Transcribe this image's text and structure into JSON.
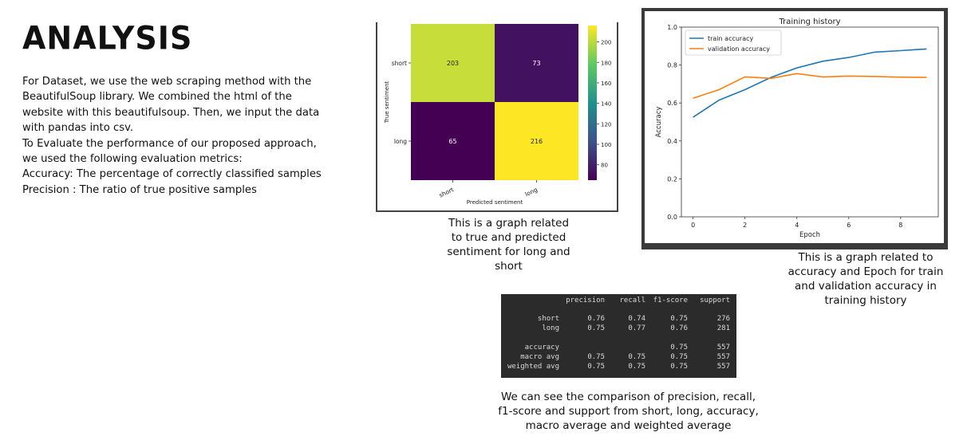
{
  "slide": {
    "title": "ANALYSIS",
    "paragraphs": [
      "For Dataset, we use the web scraping method with the",
      "BeautifulSoup library. We combined the html of the",
      "website with this beautifulsoup. Then, we input the data",
      "with pandas into csv.",
      "To Evaluate the performance of our proposed approach,",
      "we used the following evaluation metrics:",
      "Accuracy: The percentage of correctly classified samples",
      "Precision : The ratio of true positive samples"
    ],
    "captions": {
      "confusion": [
        "This is a graph related",
        "to true and predicted",
        "sentiment for long and",
        "short"
      ],
      "history": [
        "This is a graph related to",
        "accuracy and Epoch for train",
        "and validation accuracy in",
        "training history"
      ],
      "table": [
        "We can see the comparison of precision, recall,",
        "f1-score and support from short, long, accuracy,",
        "macro average and weighted average"
      ]
    }
  },
  "chart_data": [
    {
      "type": "heatmap",
      "title": "",
      "xlabel": "Predicted sentiment",
      "ylabel": "True sentiment",
      "x_labels": [
        "short",
        "long"
      ],
      "y_labels": [
        "short",
        "long"
      ],
      "values": [
        [
          203,
          73
        ],
        [
          65,
          216
        ]
      ],
      "colorbar_ticks": [
        80,
        100,
        120,
        140,
        160,
        180,
        200
      ],
      "colorbar_range": [
        65,
        216
      ],
      "colors": {
        "low": "#440154",
        "high": "#fde725",
        "mid_low": "#3b528b",
        "mid_high": "#5ec962",
        "cell_text_dark": "#222222",
        "cell_text_light": "#ffffff"
      }
    },
    {
      "type": "line",
      "title": "Training history",
      "xlabel": "Epoch",
      "ylabel": "Accuracy",
      "xlim": [
        -0.45,
        9.45
      ],
      "ylim": [
        0.0,
        1.0
      ],
      "x_ticks": [
        0,
        2,
        4,
        6,
        8
      ],
      "y_ticks": [
        "0.0",
        "0.2",
        "0.4",
        "0.6",
        "0.8",
        "1.0"
      ],
      "legend": "top-left",
      "x": [
        0,
        1,
        2,
        3,
        4,
        5,
        6,
        7,
        8,
        9
      ],
      "series": [
        {
          "name": "train accuracy",
          "color": "#1f77b4",
          "values": [
            0.525,
            0.615,
            0.67,
            0.735,
            0.785,
            0.82,
            0.84,
            0.868,
            0.876,
            0.885
          ]
        },
        {
          "name": "validation accuracy",
          "color": "#ff7f0e",
          "values": [
            0.625,
            0.67,
            0.738,
            0.73,
            0.755,
            0.737,
            0.742,
            0.74,
            0.736,
            0.735
          ]
        }
      ]
    },
    {
      "type": "table",
      "columns": [
        "",
        "precision",
        "recall",
        "f1-score",
        "support"
      ],
      "rows": [
        [
          "short",
          "0.76",
          "0.74",
          "0.75",
          "276"
        ],
        [
          "long",
          "0.75",
          "0.77",
          "0.76",
          "281"
        ],
        [
          "",
          "",
          "",
          "",
          ""
        ],
        [
          "accuracy",
          "",
          "",
          "0.75",
          "557"
        ],
        [
          "macro avg",
          "0.75",
          "0.75",
          "0.75",
          "557"
        ],
        [
          "weighted avg",
          "0.75",
          "0.75",
          "0.75",
          "557"
        ]
      ]
    }
  ]
}
